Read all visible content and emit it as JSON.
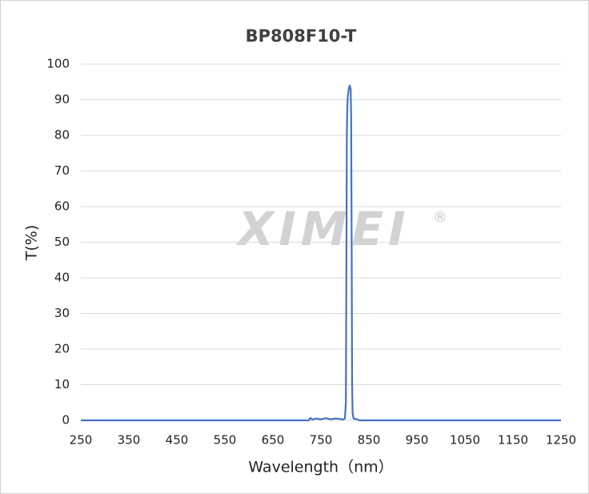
{
  "chart_data": {
    "type": "line",
    "title": "BP808F10-T",
    "watermark": "XIMEI",
    "watermark_mark": "®",
    "x_label": "Wavelength（nm）",
    "y_label": "T(%)",
    "x": [
      250,
      700,
      725,
      728,
      732,
      740,
      750,
      760,
      770,
      780,
      790,
      795,
      800,
      802,
      803,
      804,
      805,
      806,
      808,
      810,
      812,
      813,
      814,
      815,
      816,
      818,
      825,
      830,
      1250
    ],
    "series": [
      {
        "name": "T",
        "color": "#4472c4",
        "values": [
          0,
          0,
          0,
          0.7,
          0.2,
          0.5,
          0.3,
          0.6,
          0.3,
          0.5,
          0.4,
          0.2,
          0.5,
          5,
          40,
          80,
          88,
          91,
          93,
          94,
          93,
          85,
          50,
          10,
          2,
          0.5,
          0.3,
          0,
          0
        ]
      }
    ],
    "xlim": [
      250,
      1250
    ],
    "xticks": [
      250,
      350,
      450,
      550,
      650,
      750,
      850,
      950,
      1050,
      1150,
      1250
    ],
    "ylim": [
      0,
      100
    ],
    "yticks": [
      0,
      10,
      20,
      30,
      40,
      50,
      60,
      70,
      80,
      90,
      100
    ],
    "grid": true
  }
}
